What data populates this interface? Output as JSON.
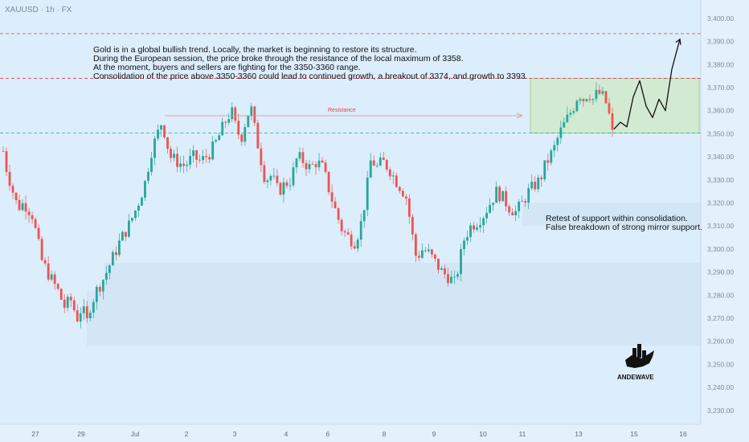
{
  "header": {
    "symbol_line": "XAUUSD · 1h · FX"
  },
  "annotations": {
    "main_text": [
      "Gold is in a global bullish trend. Locally, the market is beginning to restore its structure.",
      "During the European session, the price broke through the resistance of the local maximum of 3358.",
      "At the moment, buyers and sellers are fighting for the 3350-3360 range.",
      "Consolidation of the price above 3350-3360 could lead to continued growth, a breakout of 3374, and growth to 3393."
    ],
    "retest_text": [
      "Retest of support within consolidation.",
      "False breakdown of strong mirror support."
    ],
    "resistance_label": "Resistance"
  },
  "logo": {
    "text": "ANDEWAVE"
  },
  "colors": {
    "background": "#dcedfb",
    "bull": "#26a69a",
    "bear": "#ef5350",
    "red_line": "#e0474c",
    "green_line": "#26a69a",
    "blue_tag": "#2962ff",
    "gray_tag": "#b2b5be",
    "consolidation_zone": "#cfe8c4"
  },
  "chart_data": {
    "type": "candlestick",
    "title": "",
    "ylim": [
      3224,
      3408
    ],
    "y_ticks": [
      "3,400.00",
      "3,390.00",
      "3,380.00",
      "3,370.00",
      "3,360.00",
      "3,350.00",
      "3,340.00",
      "3,330.00",
      "3,320.00",
      "3,310.00",
      "3,300.00",
      "3,290.00",
      "3,280.00",
      "3,270.00",
      "3,260.00",
      "3,250.00",
      "3,240.00",
      "3,230.00"
    ],
    "x_ticks": [
      "27",
      "29",
      "Jul",
      "2",
      "3",
      "4",
      "6",
      "8",
      "9",
      "10",
      "11",
      "13",
      "15",
      "16"
    ],
    "price_levels": [
      {
        "value": 3393.41,
        "label": "3,393.41",
        "style": "dashed-red"
      },
      {
        "value": 3374.0,
        "label": "3,374.00",
        "style": "dashed-red"
      },
      {
        "value": 3357.99,
        "label": "3,357.99",
        "style": "last-price"
      },
      {
        "value": 3350.27,
        "label": "3,350.27",
        "style": "dashed-green"
      }
    ],
    "price_path": [
      [
        0,
        3350
      ],
      [
        8,
        3335
      ],
      [
        16,
        3325
      ],
      [
        22,
        3318
      ],
      [
        30,
        3320
      ],
      [
        40,
        3315
      ],
      [
        52,
        3295
      ],
      [
        62,
        3288
      ],
      [
        72,
        3282
      ],
      [
        80,
        3275
      ],
      [
        88,
        3278
      ],
      [
        96,
        3270
      ],
      [
        102,
        3275
      ],
      [
        108,
        3268
      ],
      [
        112,
        3275
      ],
      [
        120,
        3282
      ],
      [
        130,
        3288
      ],
      [
        140,
        3296
      ],
      [
        150,
        3304
      ],
      [
        160,
        3310
      ],
      [
        170,
        3318
      ],
      [
        180,
        3328
      ],
      [
        188,
        3342
      ],
      [
        196,
        3350
      ],
      [
        202,
        3356
      ],
      [
        206,
        3348
      ],
      [
        212,
        3340
      ],
      [
        220,
        3338
      ],
      [
        230,
        3336
      ],
      [
        240,
        3340
      ],
      [
        250,
        3338
      ],
      [
        262,
        3342
      ],
      [
        270,
        3347
      ],
      [
        280,
        3355
      ],
      [
        288,
        3360
      ],
      [
        294,
        3352
      ],
      [
        300,
        3348
      ],
      [
        306,
        3356
      ],
      [
        312,
        3362
      ],
      [
        318,
        3350
      ],
      [
        324,
        3340
      ],
      [
        330,
        3330
      ],
      [
        338,
        3332
      ],
      [
        346,
        3325
      ],
      [
        354,
        3328
      ],
      [
        362,
        3330
      ],
      [
        370,
        3340
      ],
      [
        378,
        3338
      ],
      [
        386,
        3335
      ],
      [
        394,
        3338
      ],
      [
        402,
        3335
      ],
      [
        410,
        3325
      ],
      [
        418,
        3316
      ],
      [
        426,
        3308
      ],
      [
        434,
        3305
      ],
      [
        442,
        3303
      ],
      [
        450,
        3312
      ],
      [
        456,
        3325
      ],
      [
        462,
        3340
      ],
      [
        468,
        3335
      ],
      [
        476,
        3338
      ],
      [
        484,
        3335
      ],
      [
        492,
        3330
      ],
      [
        500,
        3326
      ],
      [
        506,
        3322
      ],
      [
        512,
        3308
      ],
      [
        518,
        3296
      ],
      [
        526,
        3300
      ],
      [
        534,
        3298
      ],
      [
        542,
        3294
      ],
      [
        550,
        3290
      ],
      [
        558,
        3288
      ],
      [
        566,
        3285
      ],
      [
        572,
        3295
      ],
      [
        578,
        3305
      ],
      [
        586,
        3310
      ],
      [
        594,
        3312
      ],
      [
        602,
        3315
      ],
      [
        610,
        3320
      ],
      [
        618,
        3325
      ],
      [
        626,
        3322
      ],
      [
        634,
        3318
      ],
      [
        642,
        3316
      ],
      [
        650,
        3320
      ],
      [
        658,
        3325
      ],
      [
        666,
        3328
      ],
      [
        672,
        3330
      ],
      [
        678,
        3336
      ],
      [
        684,
        3340
      ],
      [
        690,
        3344
      ],
      [
        696,
        3350
      ],
      [
        702,
        3354
      ],
      [
        708,
        3358
      ],
      [
        714,
        3362
      ],
      [
        720,
        3368
      ],
      [
        726,
        3365
      ],
      [
        732,
        3368
      ],
      [
        738,
        3365
      ],
      [
        744,
        3368
      ],
      [
        750,
        3366
      ],
      [
        756,
        3362
      ],
      [
        762,
        3350
      ]
    ],
    "candles_count": 190,
    "zones": [
      {
        "name": "consolidation",
        "y_low": 3350.27,
        "y_high": 3374.0,
        "x_from": "11",
        "x_to": "15"
      },
      {
        "name": "support-zone-1",
        "y_low": 3310,
        "y_high": 3320
      },
      {
        "name": "support-zone-2",
        "y_low": 3282,
        "y_high": 3294
      },
      {
        "name": "support-zone-3",
        "y_low": 3258,
        "y_high": 3282
      }
    ],
    "forecast_path": [
      [
        764,
        3352
      ],
      [
        772,
        3355
      ],
      [
        780,
        3353
      ],
      [
        788,
        3366
      ],
      [
        796,
        3373
      ],
      [
        804,
        3362
      ],
      [
        812,
        3357
      ],
      [
        820,
        3365
      ],
      [
        828,
        3360
      ],
      [
        836,
        3378
      ],
      [
        846,
        3391
      ]
    ]
  }
}
